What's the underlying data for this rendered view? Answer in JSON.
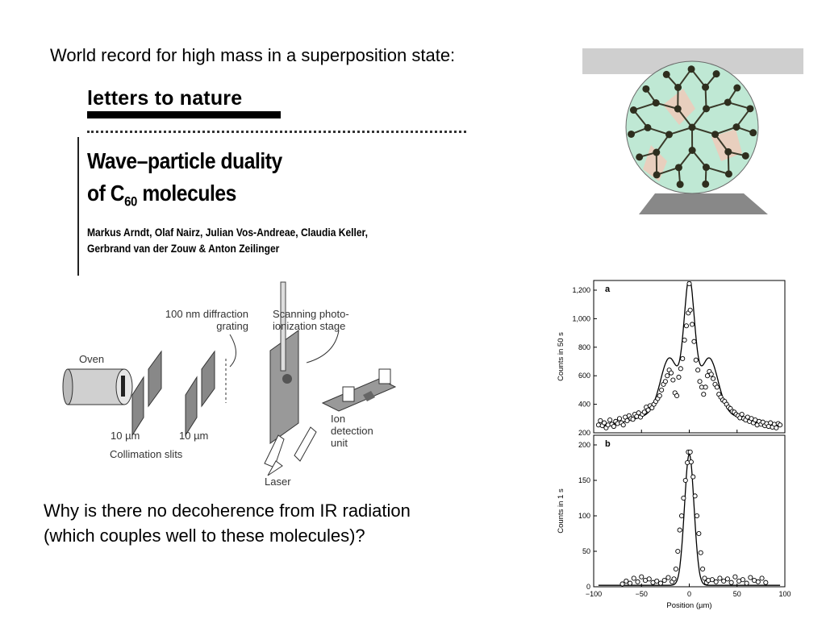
{
  "slide": {
    "title": "World record for high mass in a superposition state:",
    "question_line1": "Why is there no decoherence from IR radiation",
    "question_line2": "(which couples well to these molecules)?"
  },
  "paper": {
    "section": "letters to nature",
    "title_line1": "Wave–particle duality",
    "title_line2_prefix": "of C",
    "title_line2_sub": "60",
    "title_line2_suffix": " molecules",
    "authors_line1": "Markus Arndt, Olaf Nairz, Julian Vos-Andreae, Claudia Keller,",
    "authors_line2": "Gerbrand van der Zouw & Anton Zeilinger"
  },
  "diagram": {
    "oven": "Oven",
    "grating_line1": "100 nm diffraction",
    "grating_line2": "grating",
    "stage_line1": "Scanning photo-",
    "stage_line2": "ionization stage",
    "slit1": "10 µm",
    "slit2": "10 µm",
    "slits": "Collimation slits",
    "ion_line1": "Ion",
    "ion_line2": "detection",
    "ion_line3": "unit",
    "laser": "Laser"
  },
  "chart_data": [
    {
      "type": "scatter",
      "panel_label": "a",
      "ylabel": "Counts in 50 s",
      "ylim": [
        200,
        1200
      ],
      "yticks": [
        "200",
        "400",
        "600",
        "800",
        "1,000",
        "1,200"
      ],
      "xlim": [
        -100,
        100
      ],
      "fit": {
        "baseline": 230,
        "central_peak": 860,
        "central_width": 5.5,
        "side_peak": 360,
        "side_pos": 21,
        "side_width": 9,
        "background": 150,
        "background_width": 45
      },
      "points": [
        [
          -95,
          255
        ],
        [
          -93,
          285
        ],
        [
          -91,
          250
        ],
        [
          -89,
          270
        ],
        [
          -87,
          235
        ],
        [
          -85,
          255
        ],
        [
          -83,
          290
        ],
        [
          -81,
          260
        ],
        [
          -79,
          245
        ],
        [
          -77,
          280
        ],
        [
          -75,
          265
        ],
        [
          -73,
          300
        ],
        [
          -71,
          270
        ],
        [
          -69,
          255
        ],
        [
          -67,
          310
        ],
        [
          -65,
          285
        ],
        [
          -63,
          320
        ],
        [
          -61,
          300
        ],
        [
          -59,
          295
        ],
        [
          -57,
          330
        ],
        [
          -55,
          315
        ],
        [
          -53,
          340
        ],
        [
          -51,
          310
        ],
        [
          -49,
          330
        ],
        [
          -47,
          345
        ],
        [
          -45,
          380
        ],
        [
          -43,
          360
        ],
        [
          -41,
          390
        ],
        [
          -39,
          375
        ],
        [
          -37,
          400
        ],
        [
          -35,
          420
        ],
        [
          -33,
          440
        ],
        [
          -31,
          460
        ],
        [
          -29,
          500
        ],
        [
          -27,
          540
        ],
        [
          -25,
          560
        ],
        [
          -23,
          600
        ],
        [
          -21,
          640
        ],
        [
          -19,
          620
        ],
        [
          -17,
          570
        ],
        [
          -15,
          480
        ],
        [
          -13,
          460
        ],
        [
          -11,
          590
        ],
        [
          -9,
          650
        ],
        [
          -7,
          720
        ],
        [
          -5,
          850
        ],
        [
          -3,
          950
        ],
        [
          -1,
          1040
        ],
        [
          0,
          1250
        ],
        [
          1,
          1060
        ],
        [
          3,
          960
        ],
        [
          5,
          840
        ],
        [
          7,
          710
        ],
        [
          9,
          640
        ],
        [
          11,
          560
        ],
        [
          13,
          520
        ],
        [
          15,
          470
        ],
        [
          17,
          520
        ],
        [
          19,
          600
        ],
        [
          21,
          630
        ],
        [
          23,
          610
        ],
        [
          25,
          580
        ],
        [
          27,
          540
        ],
        [
          29,
          520
        ],
        [
          31,
          470
        ],
        [
          33,
          450
        ],
        [
          35,
          430
        ],
        [
          37,
          420
        ],
        [
          39,
          400
        ],
        [
          41,
          380
        ],
        [
          43,
          370
        ],
        [
          45,
          350
        ],
        [
          47,
          345
        ],
        [
          49,
          330
        ],
        [
          51,
          320
        ],
        [
          53,
          305
        ],
        [
          55,
          330
        ],
        [
          57,
          300
        ],
        [
          59,
          290
        ],
        [
          61,
          310
        ],
        [
          63,
          280
        ],
        [
          65,
          300
        ],
        [
          67,
          270
        ],
        [
          69,
          290
        ],
        [
          71,
          255
        ],
        [
          73,
          280
        ],
        [
          75,
          260
        ],
        [
          77,
          275
        ],
        [
          79,
          250
        ],
        [
          81,
          265
        ],
        [
          83,
          245
        ],
        [
          85,
          270
        ],
        [
          87,
          240
        ],
        [
          89,
          260
        ],
        [
          91,
          235
        ],
        [
          93,
          265
        ],
        [
          95,
          255
        ]
      ]
    },
    {
      "type": "scatter",
      "panel_label": "b",
      "ylabel": "Counts in 1 s",
      "xlabel": "Position (µm)",
      "ylim": [
        0,
        200
      ],
      "yticks": [
        "0",
        "50",
        "100",
        "150",
        "200"
      ],
      "xlim": [
        -100,
        100
      ],
      "xticks": [
        "−100",
        "−50",
        "0",
        "50",
        "100"
      ],
      "fit": {
        "baseline": 2,
        "central_peak": 185,
        "central_width": 5
      },
      "points": [
        [
          -70,
          4
        ],
        [
          -66,
          8
        ],
        [
          -62,
          5
        ],
        [
          -58,
          12
        ],
        [
          -54,
          7
        ],
        [
          -50,
          14
        ],
        [
          -46,
          9
        ],
        [
          -42,
          11
        ],
        [
          -38,
          6
        ],
        [
          -34,
          8
        ],
        [
          -30,
          5
        ],
        [
          -26,
          9
        ],
        [
          -22,
          13
        ],
        [
          -18,
          7
        ],
        [
          -16,
          11
        ],
        [
          -14,
          25
        ],
        [
          -12,
          50
        ],
        [
          -10,
          80
        ],
        [
          -8,
          100
        ],
        [
          -6,
          125
        ],
        [
          -4,
          150
        ],
        [
          -2,
          175
        ],
        [
          -1,
          190
        ],
        [
          1,
          190
        ],
        [
          2,
          176
        ],
        [
          4,
          155
        ],
        [
          6,
          128
        ],
        [
          8,
          100
        ],
        [
          10,
          75
        ],
        [
          12,
          48
        ],
        [
          14,
          25
        ],
        [
          16,
          12
        ],
        [
          18,
          6
        ],
        [
          20,
          9
        ],
        [
          24,
          10
        ],
        [
          28,
          7
        ],
        [
          32,
          12
        ],
        [
          36,
          8
        ],
        [
          40,
          11
        ],
        [
          44,
          6
        ],
        [
          48,
          14
        ],
        [
          52,
          8
        ],
        [
          56,
          10
        ],
        [
          60,
          5
        ],
        [
          64,
          13
        ],
        [
          68,
          9
        ],
        [
          72,
          7
        ],
        [
          76,
          12
        ],
        [
          80,
          6
        ]
      ]
    }
  ]
}
